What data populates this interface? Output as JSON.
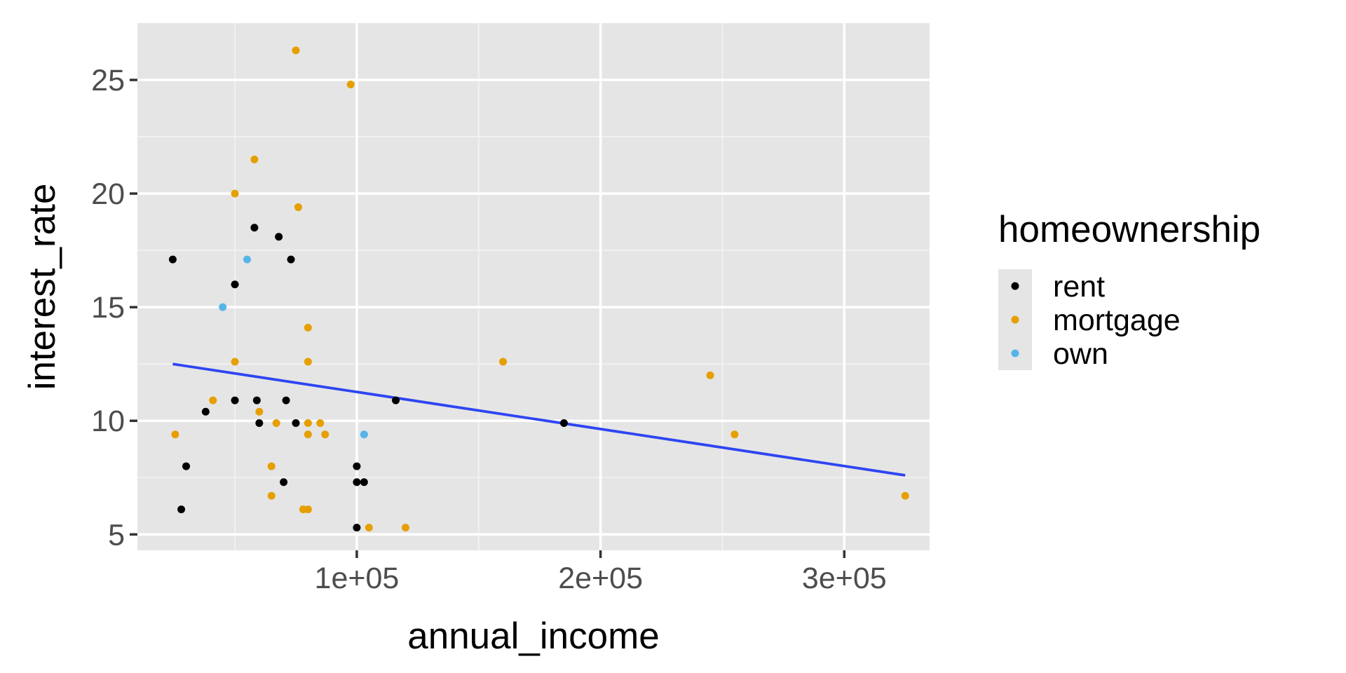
{
  "chart_data": {
    "type": "scatter",
    "xlabel": "annual_income",
    "ylabel": "interest_rate",
    "xlim": [
      10000,
      335000
    ],
    "ylim": [
      4.3,
      27.5
    ],
    "x_ticks": [
      100000,
      200000,
      300000
    ],
    "x_tick_labels": [
      "1e+05",
      "2e+05",
      "3e+05"
    ],
    "x_minor_ticks": [
      50000,
      150000,
      250000
    ],
    "y_ticks": [
      5,
      10,
      15,
      20,
      25
    ],
    "y_tick_labels": [
      "5",
      "10",
      "15",
      "20",
      "25"
    ],
    "y_minor_ticks": [
      7.5,
      12.5,
      17.5,
      22.5
    ],
    "grid": true,
    "legend": {
      "title": "homeownership",
      "position": "right",
      "entries": [
        {
          "label": "rent",
          "color": "#000000"
        },
        {
          "label": "mortgage",
          "color": "#E69F00"
        },
        {
          "label": "own",
          "color": "#56B4E9"
        }
      ]
    },
    "series": [
      {
        "name": "rent",
        "color": "#000000",
        "points": [
          {
            "x": 24500,
            "y": 17.1
          },
          {
            "x": 28000,
            "y": 6.1
          },
          {
            "x": 30000,
            "y": 8.0
          },
          {
            "x": 38000,
            "y": 10.4
          },
          {
            "x": 50000,
            "y": 16.0
          },
          {
            "x": 50000,
            "y": 10.9
          },
          {
            "x": 58000,
            "y": 18.5
          },
          {
            "x": 59000,
            "y": 10.9
          },
          {
            "x": 60000,
            "y": 9.9
          },
          {
            "x": 68000,
            "y": 18.1
          },
          {
            "x": 70000,
            "y": 7.3
          },
          {
            "x": 71000,
            "y": 10.9
          },
          {
            "x": 73000,
            "y": 17.1
          },
          {
            "x": 75000,
            "y": 9.9
          },
          {
            "x": 100000,
            "y": 8.0
          },
          {
            "x": 100000,
            "y": 7.3
          },
          {
            "x": 100000,
            "y": 5.3
          },
          {
            "x": 103000,
            "y": 7.3
          },
          {
            "x": 116000,
            "y": 10.9
          },
          {
            "x": 185000,
            "y": 9.9
          }
        ]
      },
      {
        "name": "mortgage",
        "color": "#E69F00",
        "points": [
          {
            "x": 25500,
            "y": 9.4
          },
          {
            "x": 41000,
            "y": 10.9
          },
          {
            "x": 50000,
            "y": 20.0
          },
          {
            "x": 50000,
            "y": 12.6
          },
          {
            "x": 58000,
            "y": 21.5
          },
          {
            "x": 60000,
            "y": 10.4
          },
          {
            "x": 65000,
            "y": 8.0
          },
          {
            "x": 65000,
            "y": 6.7
          },
          {
            "x": 67000,
            "y": 9.9
          },
          {
            "x": 75000,
            "y": 26.3
          },
          {
            "x": 76000,
            "y": 19.4
          },
          {
            "x": 78000,
            "y": 6.1
          },
          {
            "x": 80000,
            "y": 14.1
          },
          {
            "x": 80000,
            "y": 12.6
          },
          {
            "x": 80000,
            "y": 9.9
          },
          {
            "x": 80000,
            "y": 9.4
          },
          {
            "x": 80000,
            "y": 6.1
          },
          {
            "x": 85000,
            "y": 9.9
          },
          {
            "x": 87000,
            "y": 9.4
          },
          {
            "x": 97500,
            "y": 24.8
          },
          {
            "x": 105000,
            "y": 5.3
          },
          {
            "x": 120000,
            "y": 5.3
          },
          {
            "x": 160000,
            "y": 12.6
          },
          {
            "x": 245000,
            "y": 12.0
          },
          {
            "x": 255000,
            "y": 9.4
          },
          {
            "x": 325000,
            "y": 6.7
          }
        ]
      },
      {
        "name": "own",
        "color": "#56B4E9",
        "points": [
          {
            "x": 45000,
            "y": 15.0
          },
          {
            "x": 55000,
            "y": 17.1
          },
          {
            "x": 103000,
            "y": 9.4
          }
        ]
      }
    ],
    "trend_line": {
      "color": "#2E45F2",
      "points": [
        {
          "x": 24500,
          "y": 12.5
        },
        {
          "x": 325000,
          "y": 7.6
        }
      ]
    }
  }
}
